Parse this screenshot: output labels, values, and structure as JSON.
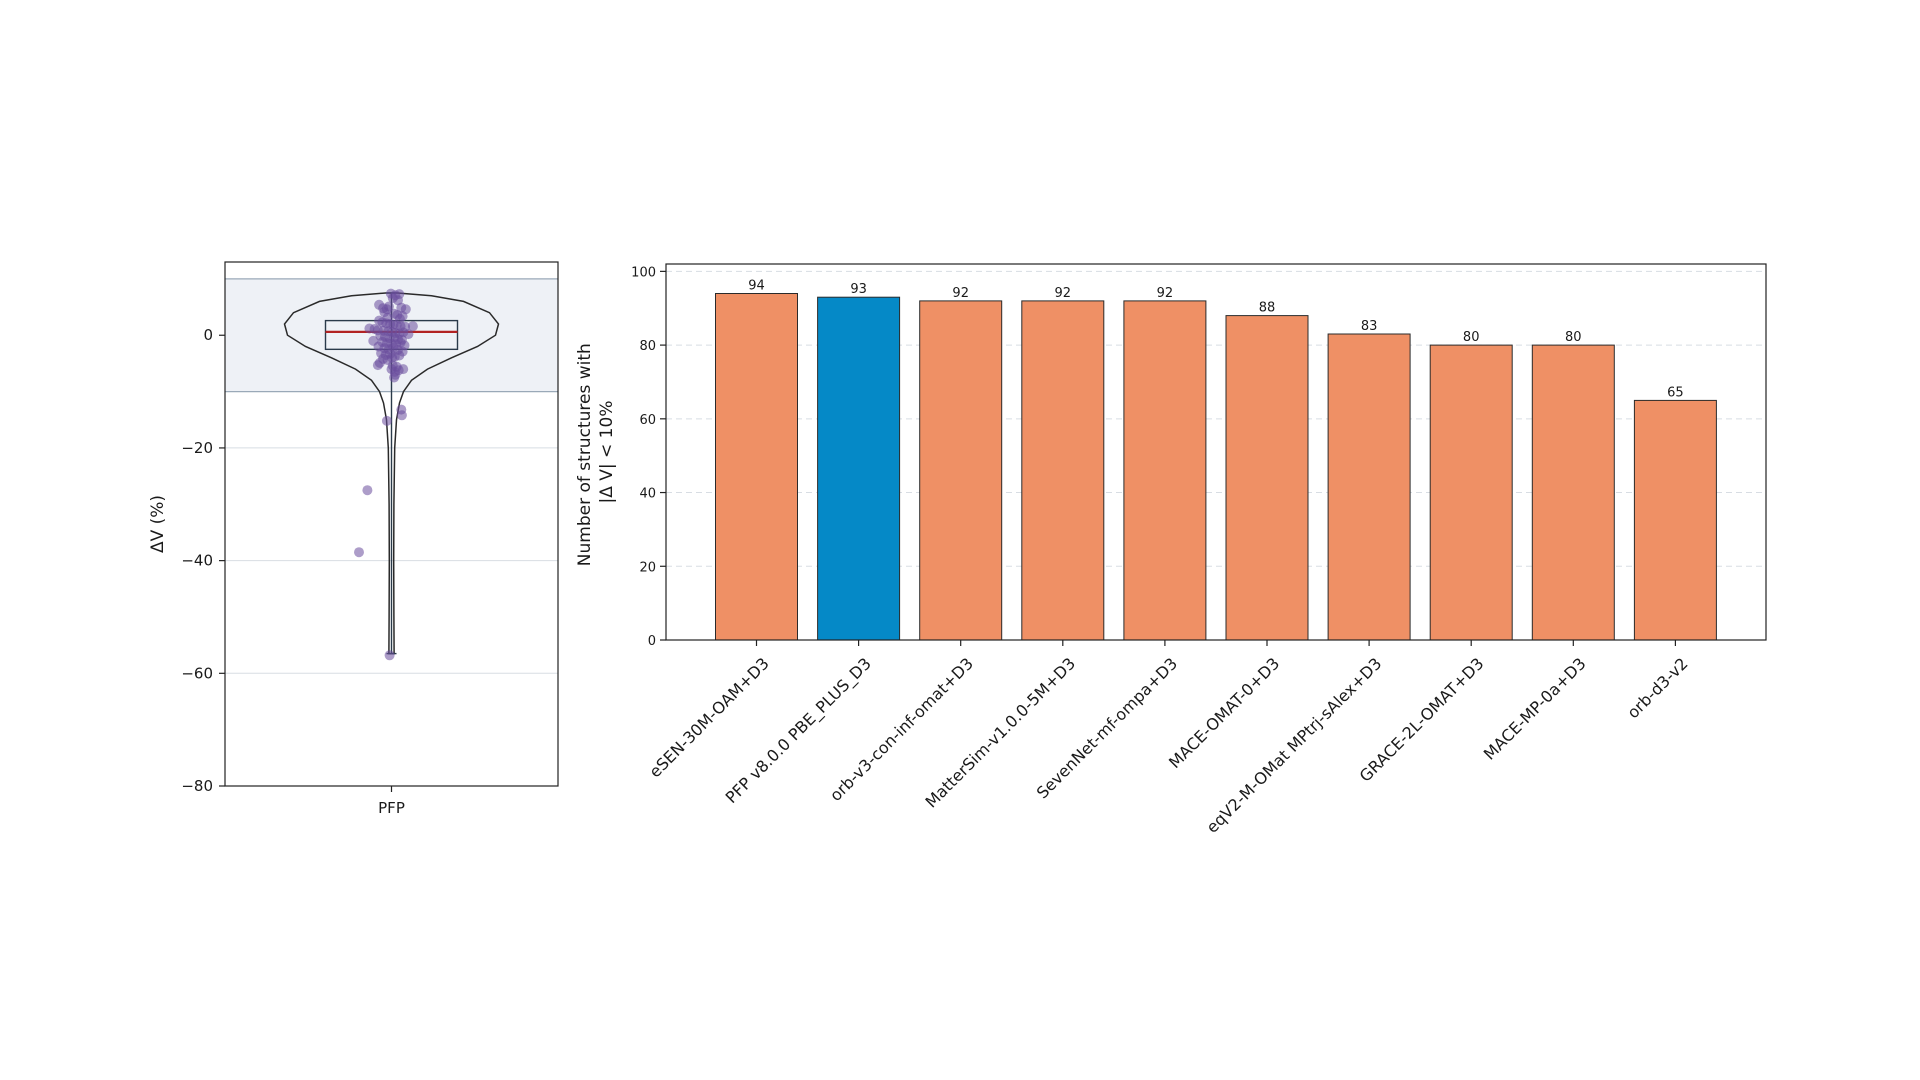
{
  "colors": {
    "bar_default": "#ef9065",
    "bar_highlight": "#0589c7",
    "points": "#6a4c9c",
    "median": "#b22222",
    "band_fill": "#eef1f6",
    "band_line": "#9aa9b8",
    "grid": "#d8dde3"
  },
  "chart_data": [
    {
      "type": "violin",
      "title": "",
      "xlabel": "",
      "ylabel": "ΔV (%)",
      "categories": [
        "PFP"
      ],
      "ylim": [
        -80,
        13
      ],
      "yticks": [
        0,
        -20,
        -40,
        -60,
        -80
      ],
      "ytick_labels": [
        "0",
        "−20",
        "−40",
        "−60",
        "−80"
      ],
      "band": [
        -10,
        10
      ],
      "box": {
        "q1": -2.5,
        "median": 0.6,
        "q3": 2.6,
        "whisker_low": -56.5,
        "whisker_high": 7.5
      },
      "points": [
        {
          "x": 0.99,
          "y": 7.4
        },
        {
          "x": 1.06,
          "y": 7.1
        },
        {
          "x": 1.12,
          "y": 7.3
        },
        {
          "x": 1.02,
          "y": 6.6
        },
        {
          "x": 1.1,
          "y": 6.2
        },
        {
          "x": 0.81,
          "y": 5.4
        },
        {
          "x": 0.96,
          "y": 5.1
        },
        {
          "x": 0.87,
          "y": 4.8
        },
        {
          "x": 0.93,
          "y": 4.6
        },
        {
          "x": 1.15,
          "y": 4.9
        },
        {
          "x": 1.22,
          "y": 4.6
        },
        {
          "x": 0.89,
          "y": 4.1
        },
        {
          "x": 1.04,
          "y": 3.8
        },
        {
          "x": 1.09,
          "y": 3.6
        },
        {
          "x": 1.17,
          "y": 3.4
        },
        {
          "x": 0.94,
          "y": 3.1
        },
        {
          "x": 1.13,
          "y": 2.9
        },
        {
          "x": 0.81,
          "y": 2.6
        },
        {
          "x": 0.86,
          "y": 2.3
        },
        {
          "x": 0.92,
          "y": 2.1
        },
        {
          "x": 0.98,
          "y": 2.0
        },
        {
          "x": 1.03,
          "y": 1.9
        },
        {
          "x": 1.08,
          "y": 1.8
        },
        {
          "x": 1.14,
          "y": 1.6
        },
        {
          "x": 1.21,
          "y": 1.5
        },
        {
          "x": 1.33,
          "y": 1.6
        },
        {
          "x": 0.66,
          "y": 1.2
        },
        {
          "x": 0.74,
          "y": 1.1
        },
        {
          "x": 0.79,
          "y": 0.9
        },
        {
          "x": 0.88,
          "y": 0.8
        },
        {
          "x": 0.95,
          "y": 0.7
        },
        {
          "x": 1.01,
          "y": 0.6
        },
        {
          "x": 1.06,
          "y": 0.4
        },
        {
          "x": 1.12,
          "y": 0.3
        },
        {
          "x": 1.18,
          "y": 0.5
        },
        {
          "x": 1.26,
          "y": 0.2
        },
        {
          "x": 0.83,
          "y": -0.1
        },
        {
          "x": 0.9,
          "y": -0.3
        },
        {
          "x": 0.97,
          "y": -0.5
        },
        {
          "x": 1.04,
          "y": -0.4
        },
        {
          "x": 1.1,
          "y": -0.7
        },
        {
          "x": 1.16,
          "y": -0.8
        },
        {
          "x": 0.72,
          "y": -1.0
        },
        {
          "x": 0.86,
          "y": -1.2
        },
        {
          "x": 0.93,
          "y": -1.4
        },
        {
          "x": 1.0,
          "y": -1.5
        },
        {
          "x": 1.07,
          "y": -1.6
        },
        {
          "x": 1.14,
          "y": -1.3
        },
        {
          "x": 1.2,
          "y": -1.8
        },
        {
          "x": 0.8,
          "y": -2.0
        },
        {
          "x": 0.89,
          "y": -2.3
        },
        {
          "x": 0.96,
          "y": -2.5
        },
        {
          "x": 1.03,
          "y": -2.2
        },
        {
          "x": 1.1,
          "y": -2.6
        },
        {
          "x": 1.17,
          "y": -2.9
        },
        {
          "x": 0.84,
          "y": -3.2
        },
        {
          "x": 0.91,
          "y": -3.5
        },
        {
          "x": 0.98,
          "y": -3.3
        },
        {
          "x": 1.05,
          "y": -3.8
        },
        {
          "x": 1.12,
          "y": -3.6
        },
        {
          "x": 0.87,
          "y": -4.2
        },
        {
          "x": 0.94,
          "y": -4.4
        },
        {
          "x": 1.01,
          "y": -4.0
        },
        {
          "x": 0.82,
          "y": -4.9
        },
        {
          "x": 0.79,
          "y": -5.3
        },
        {
          "x": 1.02,
          "y": -5.4
        },
        {
          "x": 1.08,
          "y": -5.6
        },
        {
          "x": 1.0,
          "y": -6.0
        },
        {
          "x": 1.05,
          "y": -6.5
        },
        {
          "x": 1.11,
          "y": -6.2
        },
        {
          "x": 1.18,
          "y": -6.0
        },
        {
          "x": 1.06,
          "y": -7.0
        },
        {
          "x": 1.04,
          "y": -7.5
        },
        {
          "x": 1.15,
          "y": -13.2
        },
        {
          "x": 1.16,
          "y": -14.2
        },
        {
          "x": 0.93,
          "y": -15.2
        },
        {
          "x": 0.63,
          "y": -27.5
        },
        {
          "x": 0.5,
          "y": -38.5
        },
        {
          "x": 0.97,
          "y": -56.8
        }
      ]
    },
    {
      "type": "bar",
      "title": "",
      "xlabel": "",
      "ylabel": [
        "Number of structures with",
        "|Δ V| < 10%"
      ],
      "categories": [
        "eSEN-30M-OAM+D3",
        "PFP v8.0.0 PBE_PLUS_D3",
        "orb-v3-con-inf-omat+D3",
        "MatterSim-v1.0.0-5M+D3",
        "SevenNet-mf-ompa+D3",
        "MACE-OMAT-0+D3",
        "eqV2-M-OMat MPtrj-sAlex+D3",
        "GRACE-2L-OMAT+D3",
        "MACE-MP-0a+D3",
        "orb-d3-v2"
      ],
      "values": [
        94,
        93,
        92,
        92,
        92,
        88,
        83,
        80,
        80,
        65
      ],
      "value_labels": [
        "94",
        "93",
        "92",
        "92",
        "92",
        "88",
        "83",
        "80",
        "80",
        "65"
      ],
      "highlight_index": 1,
      "ylim": [
        0,
        102
      ],
      "yticks": [
        0,
        20,
        40,
        60,
        80,
        100
      ],
      "ytick_labels": [
        "0",
        "20",
        "40",
        "60",
        "80",
        "100"
      ],
      "grid": "y-dashed"
    }
  ]
}
